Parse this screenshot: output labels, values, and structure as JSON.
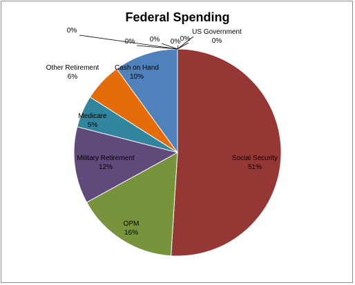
{
  "chart_data": {
    "type": "pie",
    "title": "Federal Spending",
    "slices": [
      {
        "label": "Social Security",
        "pct_label": "51%",
        "value": 51,
        "color": "#953735"
      },
      {
        "label": "OPM",
        "pct_label": "16%",
        "value": 16,
        "color": "#77933c"
      },
      {
        "label": "Military Retirement",
        "pct_label": "12%",
        "value": 12,
        "color": "#604a7b"
      },
      {
        "label": "Medicare",
        "pct_label": "5%",
        "value": 5,
        "color": "#31859c"
      },
      {
        "label": "Other Retirement",
        "pct_label": "6%",
        "value": 6,
        "color": "#e46c0a"
      },
      {
        "label": "Cash on Hand",
        "pct_label": "10%",
        "value": 10,
        "color": "#4f81bd"
      },
      {
        "label": "",
        "pct_label": "0%",
        "value": 0,
        "color": "#4f81bd"
      },
      {
        "label": "",
        "pct_label": "0%",
        "value": 0,
        "color": "#c0504d"
      },
      {
        "label": "",
        "pct_label": "0%",
        "value": 0,
        "color": "#9bbb59"
      },
      {
        "label": "",
        "pct_label": "0%",
        "value": 0,
        "color": "#8064a2"
      },
      {
        "label": "",
        "pct_label": "0%",
        "value": 0,
        "color": "#4bacc6"
      },
      {
        "label": "US Government",
        "pct_label": "0%",
        "value": 0,
        "color": "#f79646"
      }
    ]
  }
}
